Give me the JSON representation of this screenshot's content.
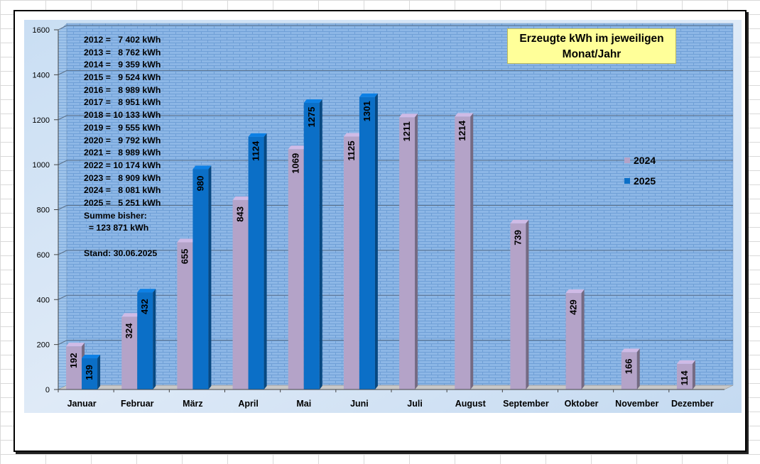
{
  "chart_data": {
    "type": "bar",
    "title": "Erzeugte kWh im jeweiligen Monat/Jahr",
    "categories": [
      "Januar",
      "Februar",
      "März",
      "April",
      "Mai",
      "Juni",
      "Juli",
      "August",
      "September",
      "Oktober",
      "November",
      "Dezember"
    ],
    "series": [
      {
        "name": "2024",
        "color": "#b4a3c8",
        "values": [
          192,
          324,
          655,
          843,
          1069,
          1125,
          1211,
          1214,
          739,
          429,
          166,
          114
        ]
      },
      {
        "name": "2025",
        "color": "#0b6fc7",
        "values": [
          139,
          432,
          980,
          1124,
          1275,
          1301,
          null,
          null,
          null,
          null,
          null,
          null
        ]
      }
    ],
    "y_ticks": [
      "0",
      "200",
      "400",
      "600",
      "800",
      "1000",
      "1200",
      "1400",
      "1600"
    ],
    "ylim": [
      0,
      1600
    ],
    "grid": true,
    "legend_position": "right",
    "annotations": {
      "yearly_totals": [
        "2012 =   7 402 kWh",
        "2013 =   8 762 kWh",
        "2014 =   9 359 kWh",
        "2015 =   9 524 kWh",
        "2016 =   8 989 kWh",
        "2017 =   8 951 kWh",
        "2018 = 10 133 kWh",
        "2019 =   9 555 kWh",
        "2020 =   9 792 kWh",
        "2021 =   8 989 kWh",
        "2022 = 10 174 kWh",
        "2023 =   8 909 kWh",
        "2024 =   8 081 kWh",
        "2025 =   5 251 kWh"
      ],
      "sum_label": "Summe bisher:",
      "sum_value": "  = 123 871 kWh",
      "stand": "Stand: 30.06.2025"
    },
    "title_lines": [
      "Erzeugte kWh im jeweiligen",
      "Monat/Jahr"
    ]
  }
}
